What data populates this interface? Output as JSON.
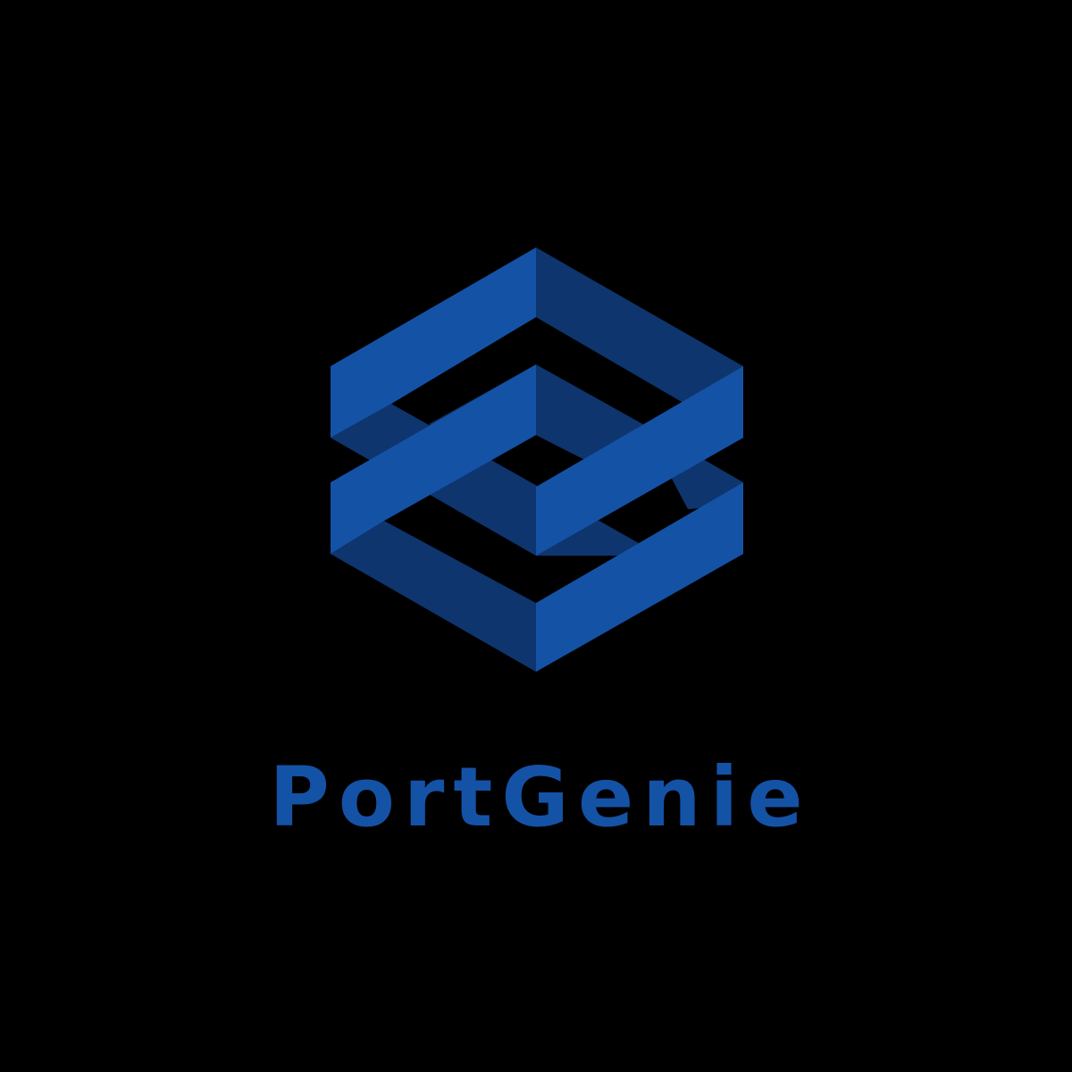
{
  "brand": {
    "name": "PortGenie",
    "logo_icon": "isometric-ribbon-cube-icon"
  },
  "colors": {
    "background": "#000000",
    "brand_light": "#1452A6",
    "brand_dark": "#0E356D"
  }
}
